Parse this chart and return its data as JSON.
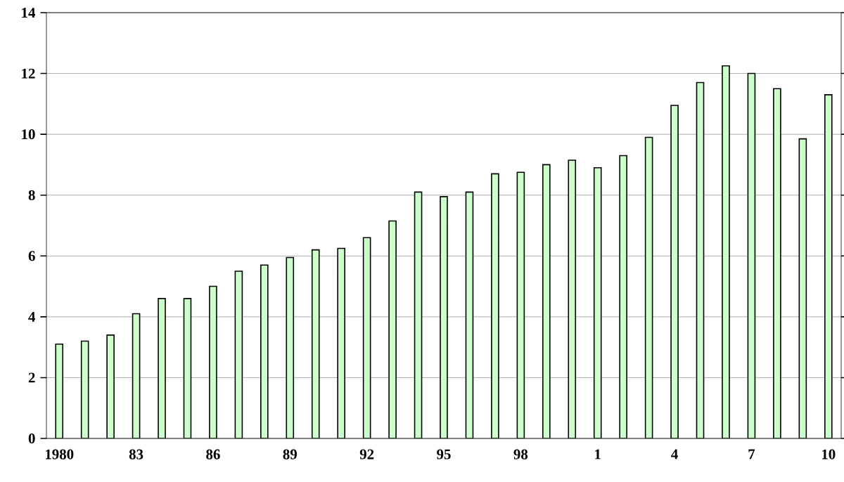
{
  "chart_data": {
    "type": "bar",
    "categories": [
      "1980",
      null,
      null,
      "83",
      null,
      null,
      "86",
      null,
      null,
      "89",
      null,
      null,
      "92",
      null,
      null,
      "95",
      null,
      null,
      "98",
      null,
      null,
      "1",
      null,
      null,
      "4",
      null,
      null,
      "7",
      null,
      null,
      "10"
    ],
    "values": [
      3.1,
      3.2,
      3.4,
      4.1,
      4.6,
      4.6,
      5.0,
      5.5,
      5.7,
      5.95,
      6.2,
      6.25,
      6.6,
      7.15,
      8.1,
      7.95,
      8.1,
      8.7,
      8.75,
      9.0,
      9.15,
      8.9,
      9.3,
      9.9,
      10.95,
      11.7,
      12.25,
      12.0,
      11.5,
      9.85,
      11.3
    ],
    "color": "#ccffcc",
    "ylim": [
      0,
      14
    ],
    "yticks": [
      0,
      2,
      4,
      6,
      8,
      10,
      12,
      14
    ],
    "grid": "y"
  }
}
